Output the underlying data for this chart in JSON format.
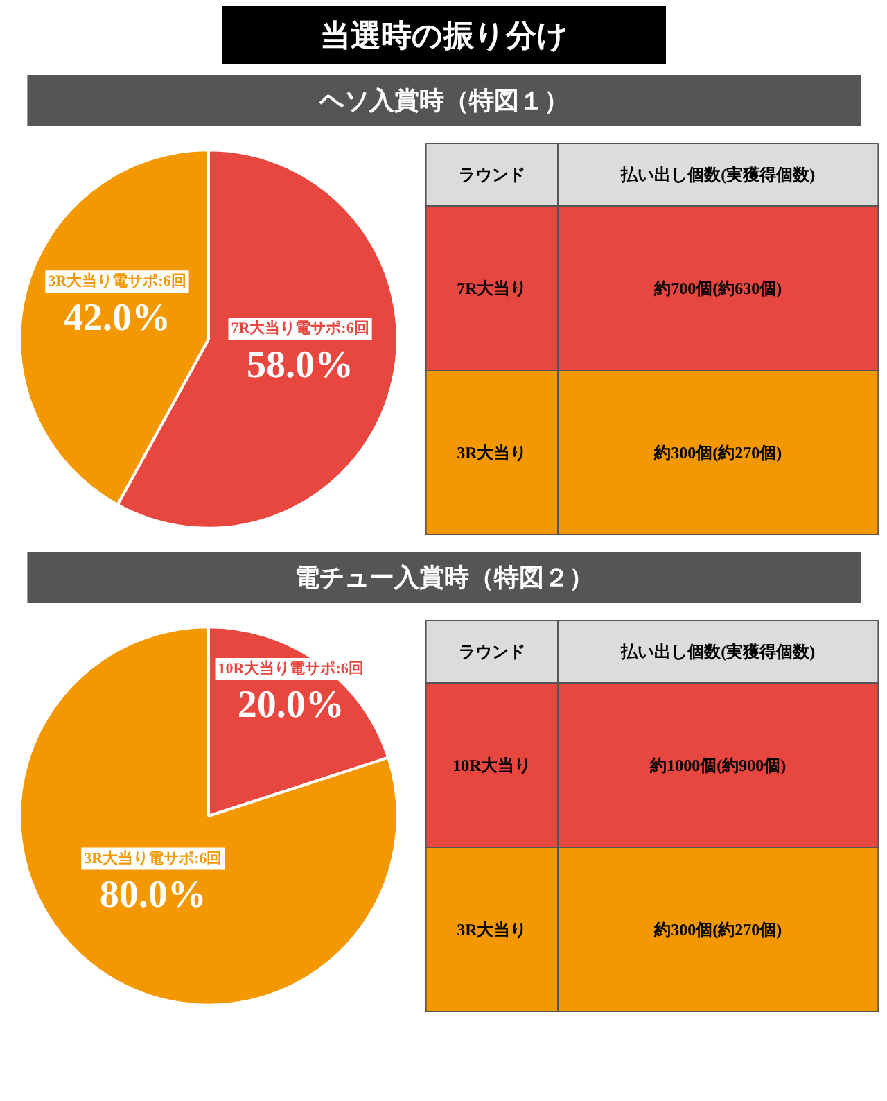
{
  "chart_data": [
    {
      "type": "other",
      "title": "当選時の振り分け"
    },
    {
      "type": "pie",
      "title": "ヘソ入賞時（特図１）",
      "categories": [
        "7R大当り電サポ:6回",
        "3R大当り電サポ:6回"
      ],
      "values": [
        58.0,
        42.0
      ],
      "colors": [
        "#e8473f",
        "#f39800"
      ],
      "value_labels": [
        "58.0%",
        "42.0%"
      ]
    },
    {
      "type": "other",
      "categories": [
        "ラウンド",
        "払い出し個数(実獲得個数)"
      ],
      "annotations": [
        "7R大当り",
        "約700個(約630個)",
        "3R大当り",
        "約300個(約270個)"
      ]
    },
    {
      "type": "pie",
      "title": "電チュー入賞時（特図２）",
      "categories": [
        "10R大当り電サポ:6回",
        "3R大当り電サポ:6回"
      ],
      "values": [
        20.0,
        80.0
      ],
      "colors": [
        "#e8473f",
        "#f39800"
      ],
      "value_labels": [
        "20.0%",
        "80.0%"
      ]
    },
    {
      "type": "other",
      "categories": [
        "ラウンド",
        "払い出し個数(実獲得個数)"
      ],
      "annotations": [
        "10R大当り",
        "約1000個(約900個)",
        "3R大当り",
        "約300個(約270個)"
      ]
    }
  ]
}
